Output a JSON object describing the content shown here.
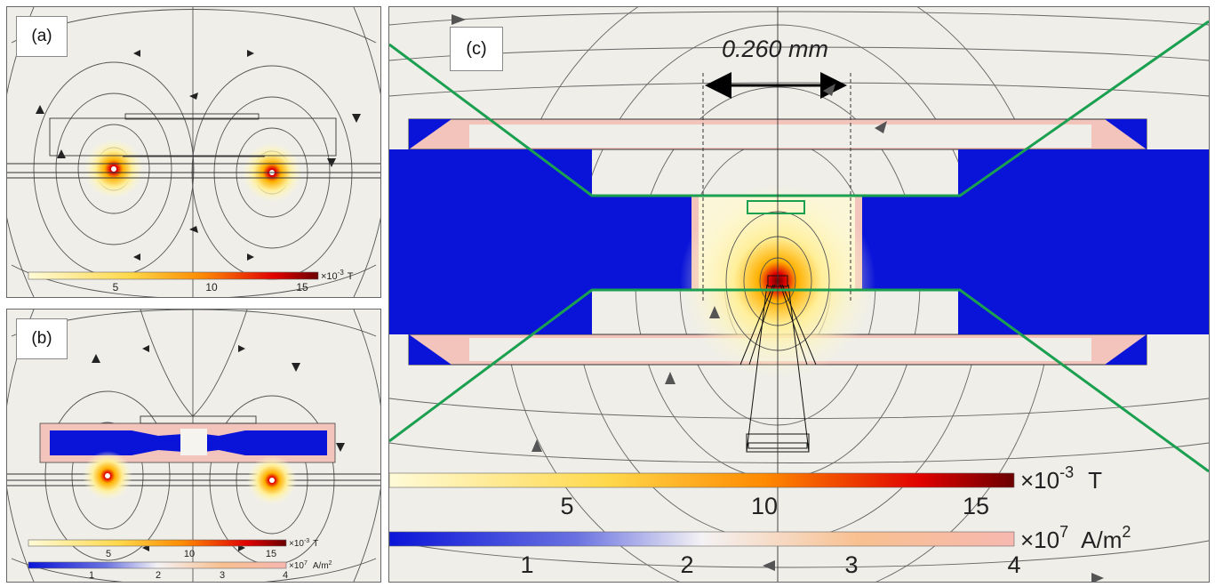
{
  "panels": {
    "a": {
      "label": "(a)",
      "field_scale": {
        "multiplier": "×10",
        "exponent": "-3",
        "unit": "T",
        "ticks": [
          "5",
          "10",
          "15"
        ]
      }
    },
    "b": {
      "label": "(b)",
      "field_scale": {
        "multiplier": "×10",
        "exponent": "-3",
        "unit": "T",
        "ticks": [
          "5",
          "10",
          "15"
        ]
      },
      "current_scale": {
        "multiplier": "×10",
        "exponent": "7",
        "unit": "A/m",
        "unit_exp": "2",
        "ticks": [
          "1",
          "2",
          "3",
          "4"
        ]
      }
    },
    "c": {
      "label": "(c)",
      "dimension": "0.260 mm",
      "field_scale": {
        "multiplier": "×10",
        "exponent": "-3",
        "unit": "T",
        "ticks": [
          "5",
          "10",
          "15"
        ]
      },
      "current_scale": {
        "multiplier": "×10",
        "exponent": "7",
        "unit": "A/m",
        "unit_exp": "2",
        "ticks": [
          "1",
          "2",
          "3",
          "4"
        ]
      }
    }
  },
  "colors": {
    "background": "#efeee8",
    "field_low": "#fffbd8",
    "field_mid": "#ffb000",
    "field_high": "#e00000",
    "field_max": "#6b0000",
    "current_low": "#0a14d8",
    "current_high": "#f7b8b0",
    "outline_green": "#1aa050",
    "streamline": "#555555"
  }
}
